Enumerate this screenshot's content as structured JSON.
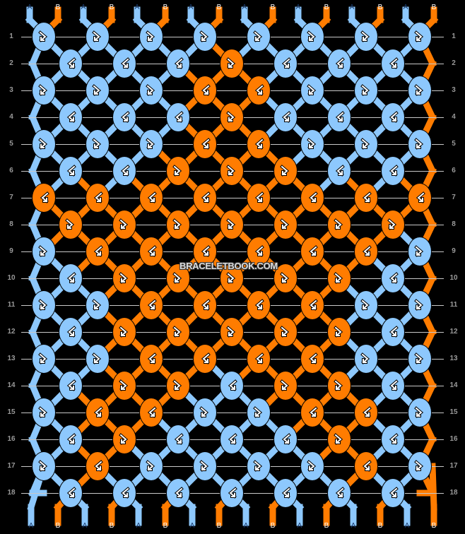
{
  "colors": {
    "A": "#8dc8fd",
    "B": "#ff7c00",
    "background": "#000000",
    "gridline": "#c8c8c8",
    "rownum": "#9a9a9a"
  },
  "strands_top": [
    "A",
    "B",
    "A",
    "B",
    "A",
    "B",
    "A",
    "B",
    "A",
    "B",
    "A",
    "B",
    "A",
    "B",
    "A",
    "B"
  ],
  "strands_bottom": [
    "A",
    "B",
    "A",
    "B",
    "A",
    "B",
    "A",
    "B",
    "A",
    "B",
    "A",
    "B",
    "A",
    "B",
    "A",
    "B"
  ],
  "row_numbers": [
    "1",
    "2",
    "3",
    "4",
    "5",
    "6",
    "7",
    "8",
    "9",
    "10",
    "11",
    "12",
    "13",
    "14",
    "15",
    "16",
    "17",
    "18"
  ],
  "watermark": "BRACELETBOOK.COM",
  "rows": [
    {
      "colors": [
        "A",
        "A",
        "A",
        "A",
        "A",
        "A",
        "A",
        "A"
      ],
      "knots": [
        "fb",
        "fb",
        "fb",
        "fb",
        "fb",
        "fb",
        "fb",
        "fb"
      ]
    },
    {
      "colors": [
        "A",
        "A",
        "A",
        "B",
        "A",
        "A",
        "A"
      ],
      "knots": [
        "bf",
        "bf",
        "bf",
        "fb",
        "bf",
        "bf",
        "bf"
      ]
    },
    {
      "colors": [
        "A",
        "A",
        "A",
        "B",
        "B",
        "A",
        "A",
        "A"
      ],
      "knots": [
        "fb",
        "fb",
        "fb",
        "bf",
        "bf",
        "fb",
        "fb",
        "fb"
      ]
    },
    {
      "colors": [
        "A",
        "A",
        "A",
        "B",
        "A",
        "A",
        "A"
      ],
      "knots": [
        "bf",
        "bf",
        "bf",
        "fb",
        "bf",
        "bf",
        "bf"
      ]
    },
    {
      "colors": [
        "A",
        "A",
        "A",
        "B",
        "B",
        "A",
        "A",
        "A"
      ],
      "knots": [
        "fb",
        "fb",
        "fb",
        "bf",
        "bf",
        "fb",
        "fb",
        "fb"
      ]
    },
    {
      "colors": [
        "A",
        "A",
        "B",
        "B",
        "B",
        "A",
        "A"
      ],
      "knots": [
        "bf",
        "bf",
        "fb",
        "fb",
        "fb",
        "bf",
        "bf"
      ]
    },
    {
      "colors": [
        "B",
        "B",
        "B",
        "B",
        "B",
        "B",
        "B",
        "B"
      ],
      "knots": [
        "bf",
        "bf",
        "bf",
        "bf",
        "bf",
        "bf",
        "bf",
        "bf"
      ]
    },
    {
      "colors": [
        "B",
        "B",
        "B",
        "B",
        "B",
        "B",
        "B"
      ],
      "knots": [
        "fb",
        "fb",
        "fb",
        "fb",
        "fb",
        "fb",
        "fb"
      ]
    },
    {
      "colors": [
        "A",
        "B",
        "B",
        "B",
        "B",
        "B",
        "B",
        "A"
      ],
      "knots": [
        "fb",
        "bf",
        "bf",
        "bf",
        "bf",
        "bf",
        "bf",
        "fb"
      ]
    },
    {
      "colors": [
        "A",
        "B",
        "B",
        "B",
        "B",
        "B",
        "A"
      ],
      "knots": [
        "bf",
        "fb",
        "fb",
        "fb",
        "fb",
        "fb",
        "bf"
      ]
    },
    {
      "colors": [
        "A",
        "A",
        "B",
        "B",
        "B",
        "B",
        "A",
        "A"
      ],
      "knots": [
        "fb",
        "fb",
        "bf",
        "bf",
        "bf",
        "bf",
        "fb",
        "fb"
      ]
    },
    {
      "colors": [
        "A",
        "B",
        "B",
        "B",
        "B",
        "B",
        "A"
      ],
      "knots": [
        "bf",
        "fb",
        "fb",
        "fb",
        "fb",
        "fb",
        "bf"
      ]
    },
    {
      "colors": [
        "A",
        "A",
        "B",
        "B",
        "B",
        "B",
        "A",
        "A"
      ],
      "knots": [
        "fb",
        "fb",
        "bf",
        "bf",
        "bf",
        "bf",
        "fb",
        "fb"
      ]
    },
    {
      "colors": [
        "A",
        "B",
        "B",
        "A",
        "B",
        "B",
        "A"
      ],
      "knots": [
        "bf",
        "fb",
        "fb",
        "bf",
        "fb",
        "fb",
        "bf"
      ]
    },
    {
      "colors": [
        "A",
        "B",
        "B",
        "A",
        "A",
        "B",
        "B",
        "A"
      ],
      "knots": [
        "fb",
        "bf",
        "bf",
        "fb",
        "fb",
        "bf",
        "bf",
        "fb"
      ]
    },
    {
      "colors": [
        "A",
        "B",
        "A",
        "A",
        "A",
        "B",
        "A"
      ],
      "knots": [
        "bf",
        "fb",
        "bf",
        "bf",
        "bf",
        "fb",
        "bf"
      ]
    },
    {
      "colors": [
        "A",
        "B",
        "A",
        "A",
        "A",
        "A",
        "B",
        "A"
      ],
      "knots": [
        "fb",
        "bf",
        "fb",
        "fb",
        "fb",
        "fb",
        "bf",
        "fb"
      ]
    },
    {
      "colors": [
        "A",
        "A",
        "A",
        "A",
        "A",
        "A",
        "A"
      ],
      "knots": [
        "bf",
        "bf",
        "bf",
        "bf",
        "bf",
        "bf",
        "bf"
      ]
    }
  ],
  "icons": {
    "fb": "forward-backward-knot-icon",
    "bf": "backward-forward-knot-icon"
  }
}
